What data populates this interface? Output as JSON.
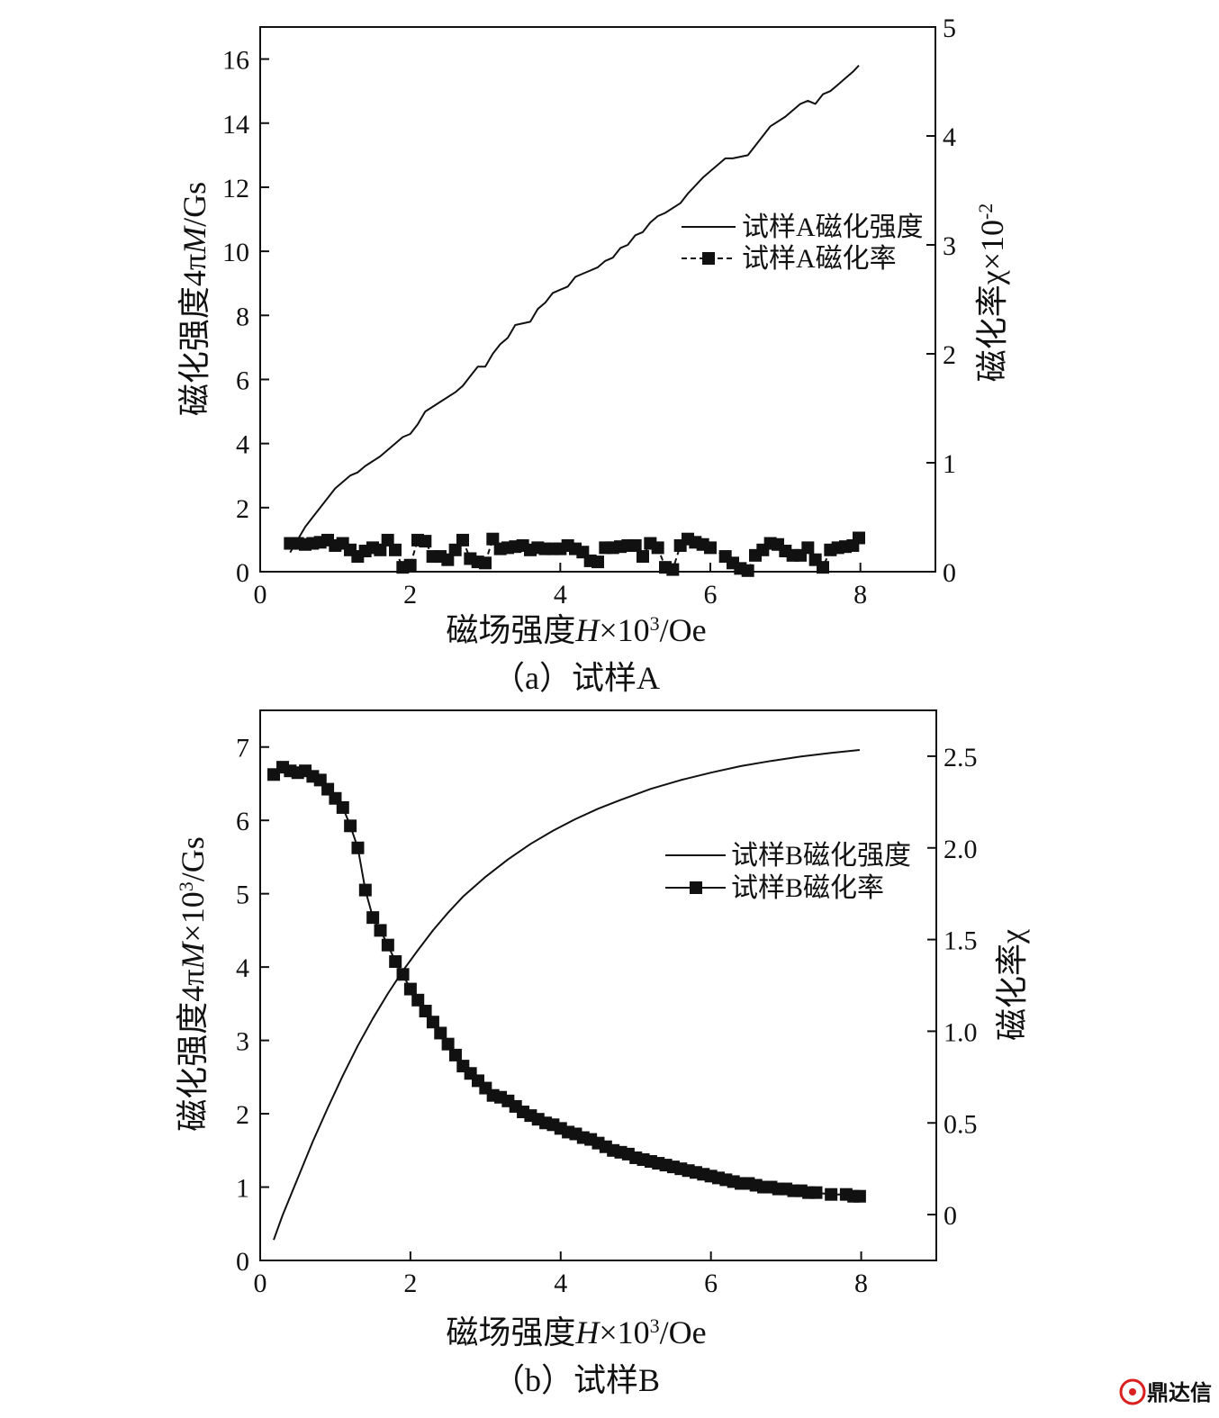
{
  "figure": {
    "watermark": "鼎达信",
    "colors": {
      "ink": "#111111",
      "watermark": "#d9201f"
    }
  },
  "chart_data": [
    {
      "panel": "a",
      "caption": "（a）试样A",
      "type": "line",
      "xlabel_parts": [
        "磁场强度",
        "H",
        "×10",
        "3",
        "/Oe"
      ],
      "ylabel_left_parts": [
        "磁化强度4π",
        "M",
        "/Gs"
      ],
      "ylabel_right_parts": [
        "磁化率χ×10",
        "-2"
      ],
      "xlim": [
        0,
        9
      ],
      "ylim_left": [
        0,
        17
      ],
      "ylim_right": [
        0,
        5
      ],
      "xticks": [
        0,
        2,
        4,
        6,
        8
      ],
      "yticks_left": [
        0,
        2,
        4,
        6,
        8,
        10,
        12,
        14,
        16
      ],
      "yticks_right": [
        0,
        1,
        2,
        3,
        4,
        5
      ],
      "grid": false,
      "legend_position": "upper-right",
      "series": [
        {
          "name": "试样A磁化强度",
          "axis": "left",
          "style": "solid-line",
          "x": [
            0.4,
            0.5,
            0.6,
            0.7,
            0.8,
            1.0,
            1.2,
            1.3,
            1.4,
            1.6,
            1.8,
            1.9,
            2.0,
            2.1,
            2.2,
            2.4,
            2.6,
            2.7,
            2.8,
            2.9,
            3.0,
            3.1,
            3.2,
            3.3,
            3.4,
            3.6,
            3.7,
            3.8,
            3.9,
            4.0,
            4.1,
            4.2,
            4.3,
            4.5,
            4.6,
            4.7,
            4.8,
            4.9,
            5.0,
            5.1,
            5.2,
            5.3,
            5.4,
            5.6,
            5.7,
            5.9,
            6.0,
            6.2,
            6.3,
            6.5,
            6.6,
            6.8,
            7.0,
            7.2,
            7.3,
            7.4,
            7.5,
            7.6,
            7.7,
            7.8,
            7.9,
            7.98
          ],
          "y": [
            0.6,
            1.0,
            1.4,
            1.7,
            2.0,
            2.6,
            3.0,
            3.1,
            3.3,
            3.6,
            4.0,
            4.2,
            4.3,
            4.6,
            5.0,
            5.3,
            5.6,
            5.8,
            6.1,
            6.4,
            6.4,
            6.8,
            7.1,
            7.3,
            7.7,
            7.8,
            8.2,
            8.4,
            8.7,
            8.8,
            8.9,
            9.2,
            9.3,
            9.5,
            9.7,
            9.8,
            10.1,
            10.2,
            10.5,
            10.6,
            10.9,
            11.1,
            11.2,
            11.5,
            11.8,
            12.3,
            12.5,
            12.9,
            12.9,
            13.0,
            13.3,
            13.9,
            14.2,
            14.6,
            14.7,
            14.6,
            14.9,
            15.0,
            15.2,
            15.4,
            15.6,
            15.8
          ]
        },
        {
          "name": "试样A磁化率",
          "axis": "right",
          "style": "dashed-line-square-markers",
          "x": [
            0.4,
            0.5,
            0.6,
            0.7,
            0.8,
            0.9,
            1.0,
            1.1,
            1.2,
            1.3,
            1.4,
            1.5,
            1.6,
            1.7,
            1.8,
            1.9,
            2.0,
            2.1,
            2.2,
            2.3,
            2.4,
            2.5,
            2.6,
            2.7,
            2.8,
            2.9,
            3.0,
            3.1,
            3.2,
            3.3,
            3.4,
            3.5,
            3.6,
            3.7,
            3.8,
            3.9,
            4.0,
            4.1,
            4.2,
            4.3,
            4.4,
            4.5,
            4.6,
            4.7,
            4.8,
            4.9,
            5.0,
            5.1,
            5.2,
            5.3,
            5.4,
            5.5,
            5.6,
            5.7,
            5.8,
            5.9,
            6.0,
            6.2,
            6.3,
            6.4,
            6.5,
            6.6,
            6.7,
            6.8,
            6.9,
            7.0,
            7.1,
            7.2,
            7.3,
            7.4,
            7.5,
            7.6,
            7.7,
            7.8,
            7.9,
            7.98
          ],
          "y": [
            0.26,
            0.26,
            0.25,
            0.26,
            0.27,
            0.29,
            0.24,
            0.26,
            0.2,
            0.14,
            0.19,
            0.22,
            0.2,
            0.29,
            0.2,
            0.04,
            0.06,
            0.29,
            0.28,
            0.14,
            0.14,
            0.11,
            0.2,
            0.29,
            0.12,
            0.09,
            0.08,
            0.3,
            0.21,
            0.22,
            0.23,
            0.24,
            0.2,
            0.22,
            0.21,
            0.21,
            0.21,
            0.24,
            0.21,
            0.18,
            0.1,
            0.09,
            0.22,
            0.22,
            0.23,
            0.24,
            0.24,
            0.14,
            0.26,
            0.22,
            0.04,
            0.02,
            0.24,
            0.3,
            0.27,
            0.25,
            0.22,
            0.14,
            0.08,
            0.03,
            0.01,
            0.15,
            0.2,
            0.26,
            0.25,
            0.19,
            0.15,
            0.15,
            0.22,
            0.11,
            0.04,
            0.2,
            0.22,
            0.23,
            0.24,
            0.31
          ]
        }
      ]
    },
    {
      "panel": "b",
      "caption": "（b）试样B",
      "type": "line",
      "xlabel_parts": [
        "磁场强度",
        "H",
        "×10",
        "3",
        "/Oe"
      ],
      "ylabel_left_parts": [
        "磁化强度4π",
        "M",
        "×10",
        "3",
        "/Gs"
      ],
      "ylabel_right_parts": [
        "磁化率χ",
        ""
      ],
      "xlim": [
        0,
        9
      ],
      "ylim_left": [
        0,
        7.5
      ],
      "ylim_right": [
        -0.25,
        2.75
      ],
      "xticks": [
        0,
        2,
        4,
        6,
        8
      ],
      "yticks_left": [
        0,
        1,
        2,
        3,
        4,
        5,
        6,
        7
      ],
      "yticks_right": [
        0,
        0.5,
        1.0,
        1.5,
        2.0,
        2.5
      ],
      "yticks_right_labels": [
        "0",
        "0.5",
        "1.0",
        "1.5",
        "2.0",
        "2.5"
      ],
      "grid": false,
      "legend_position": "upper-right",
      "series": [
        {
          "name": "试样B磁化强度",
          "axis": "left",
          "style": "solid-line",
          "x": [
            0.18,
            0.3,
            0.5,
            0.7,
            0.9,
            1.1,
            1.3,
            1.5,
            1.7,
            1.9,
            2.1,
            2.3,
            2.5,
            2.7,
            3.0,
            3.3,
            3.6,
            3.9,
            4.2,
            4.5,
            4.8,
            5.2,
            5.6,
            6.0,
            6.4,
            6.8,
            7.2,
            7.6,
            7.98
          ],
          "y": [
            0.28,
            0.62,
            1.12,
            1.62,
            2.08,
            2.52,
            2.93,
            3.3,
            3.64,
            3.95,
            4.23,
            4.5,
            4.74,
            4.96,
            5.23,
            5.47,
            5.68,
            5.86,
            6.02,
            6.16,
            6.28,
            6.43,
            6.55,
            6.65,
            6.74,
            6.81,
            6.87,
            6.92,
            6.96
          ]
        },
        {
          "name": "试样B磁化率",
          "axis": "right",
          "style": "solid-line-square-markers",
          "x": [
            0.18,
            0.3,
            0.4,
            0.5,
            0.6,
            0.7,
            0.8,
            0.9,
            1.0,
            1.1,
            1.2,
            1.3,
            1.4,
            1.5,
            1.6,
            1.7,
            1.8,
            1.9,
            2.0,
            2.1,
            2.2,
            2.3,
            2.4,
            2.5,
            2.6,
            2.7,
            2.8,
            2.9,
            3.0,
            3.1,
            3.2,
            3.3,
            3.4,
            3.5,
            3.6,
            3.7,
            3.8,
            3.9,
            4.0,
            4.1,
            4.2,
            4.3,
            4.4,
            4.5,
            4.6,
            4.7,
            4.8,
            4.9,
            5.0,
            5.1,
            5.2,
            5.3,
            5.4,
            5.5,
            5.6,
            5.7,
            5.8,
            5.9,
            6.0,
            6.1,
            6.2,
            6.3,
            6.4,
            6.5,
            6.6,
            6.7,
            6.8,
            6.9,
            7.0,
            7.1,
            7.2,
            7.3,
            7.4,
            7.6,
            7.8,
            7.9,
            7.98
          ],
          "y": [
            2.4,
            2.44,
            2.42,
            2.41,
            2.42,
            2.39,
            2.37,
            2.32,
            2.27,
            2.22,
            2.12,
            2.0,
            1.77,
            1.62,
            1.55,
            1.47,
            1.38,
            1.31,
            1.23,
            1.17,
            1.11,
            1.05,
            0.99,
            0.93,
            0.87,
            0.81,
            0.77,
            0.73,
            0.69,
            0.65,
            0.64,
            0.62,
            0.59,
            0.56,
            0.54,
            0.52,
            0.5,
            0.49,
            0.47,
            0.45,
            0.44,
            0.42,
            0.41,
            0.39,
            0.37,
            0.35,
            0.34,
            0.33,
            0.31,
            0.3,
            0.29,
            0.28,
            0.27,
            0.26,
            0.25,
            0.24,
            0.23,
            0.22,
            0.21,
            0.2,
            0.19,
            0.18,
            0.17,
            0.17,
            0.16,
            0.15,
            0.15,
            0.14,
            0.14,
            0.13,
            0.13,
            0.12,
            0.12,
            0.11,
            0.11,
            0.1,
            0.1
          ]
        }
      ]
    }
  ]
}
